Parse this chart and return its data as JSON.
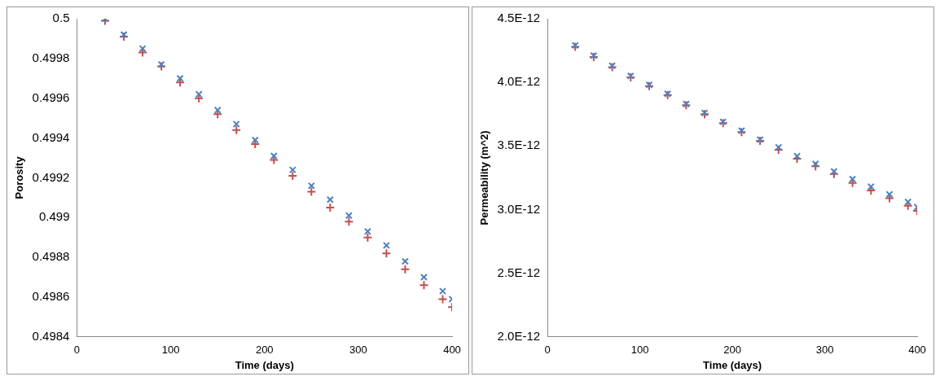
{
  "chart_data": [
    {
      "type": "scatter",
      "xlabel": "Time (days)",
      "ylabel": "Porosity",
      "xlim": [
        0,
        400
      ],
      "xticks": [
        0,
        100,
        200,
        300,
        400
      ],
      "ylim": [
        0.4984,
        0.5
      ],
      "yticks": [
        0.4984,
        0.4986,
        0.4988,
        0.499,
        0.4992,
        0.4994,
        0.4996,
        0.4998,
        0.5
      ],
      "grid": false,
      "legend": false,
      "marker": "cross",
      "x": [
        30,
        50,
        70,
        90,
        110,
        130,
        150,
        170,
        190,
        210,
        230,
        250,
        270,
        290,
        310,
        330,
        350,
        370,
        390,
        400
      ],
      "series": [
        {
          "color": "#4f81bd",
          "values": [
            0.5,
            0.49992,
            0.49985,
            0.49977,
            0.4997,
            0.49962,
            0.49954,
            0.49947,
            0.49939,
            0.49931,
            0.49924,
            0.49916,
            0.49909,
            0.49901,
            0.49893,
            0.49886,
            0.49878,
            0.4987,
            0.49863,
            0.49859
          ]
        },
        {
          "color": "#c0504d",
          "values": [
            0.49999,
            0.49991,
            0.49983,
            0.49976,
            0.49968,
            0.4996,
            0.49952,
            0.49944,
            0.49937,
            0.49929,
            0.49921,
            0.49913,
            0.49905,
            0.49898,
            0.4989,
            0.49882,
            0.49874,
            0.49866,
            0.49859,
            0.49855
          ]
        }
      ]
    },
    {
      "type": "scatter",
      "xlabel": "Time (days)",
      "ylabel": "Permeability (m^2)",
      "xlim": [
        0,
        400
      ],
      "xticks": [
        0,
        100,
        200,
        300,
        400
      ],
      "ylim": [
        2e-12,
        4.5e-12
      ],
      "yticks": [
        {
          "value": 2e-12,
          "label": "2.0E-12"
        },
        {
          "value": 2.5e-12,
          "label": "2.5E-12"
        },
        {
          "value": 3e-12,
          "label": "3.0E-12"
        },
        {
          "value": 3.5e-12,
          "label": "3.5E-12"
        },
        {
          "value": 4e-12,
          "label": "4.0E-12"
        },
        {
          "value": 4.5e-12,
          "label": "4.5E-12"
        }
      ],
      "grid": false,
      "legend": false,
      "marker": "cross",
      "x": [
        30,
        50,
        70,
        90,
        110,
        130,
        150,
        170,
        190,
        210,
        230,
        250,
        270,
        290,
        310,
        330,
        350,
        370,
        390,
        400
      ],
      "series": [
        {
          "color": "#4f81bd",
          "values": [
            4.29e-12,
            4.21e-12,
            4.13e-12,
            4.05e-12,
            3.98e-12,
            3.91e-12,
            3.83e-12,
            3.76e-12,
            3.69e-12,
            3.62e-12,
            3.55e-12,
            3.49e-12,
            3.42e-12,
            3.36e-12,
            3.3e-12,
            3.24e-12,
            3.18e-12,
            3.12e-12,
            3.06e-12,
            3.02e-12
          ]
        },
        {
          "color": "#c0504d",
          "values": [
            4.28e-12,
            4.2e-12,
            4.12e-12,
            4.04e-12,
            3.97e-12,
            3.9e-12,
            3.82e-12,
            3.75e-12,
            3.68e-12,
            3.61e-12,
            3.54e-12,
            3.47e-12,
            3.4e-12,
            3.34e-12,
            3.28e-12,
            3.21e-12,
            3.15e-12,
            3.09e-12,
            3.03e-12,
            2.99e-12
          ]
        }
      ]
    }
  ]
}
